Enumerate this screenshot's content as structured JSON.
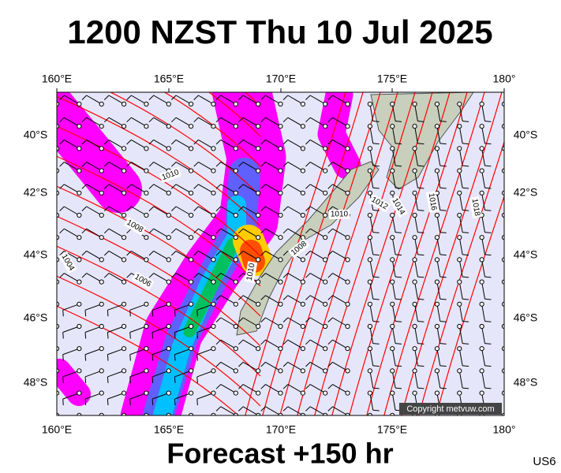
{
  "header": {
    "title": "1200 NZST Thu 10 Jul 2025"
  },
  "map": {
    "lon_labels": [
      "160°E",
      "165°E",
      "170°E",
      "175°E",
      "180°"
    ],
    "lat_labels": [
      "40°S",
      "42°S",
      "44°S",
      "46°S",
      "48°S"
    ],
    "isobar_labels": [
      "1010",
      "1008",
      "1004",
      "1006",
      "1010",
      "1008",
      "1010",
      "1012",
      "1014",
      "1016",
      "1018"
    ],
    "copyright": "Copyright metvuw.com"
  },
  "footer": {
    "forecast": "Forecast +150 hr",
    "code": "US6"
  }
}
